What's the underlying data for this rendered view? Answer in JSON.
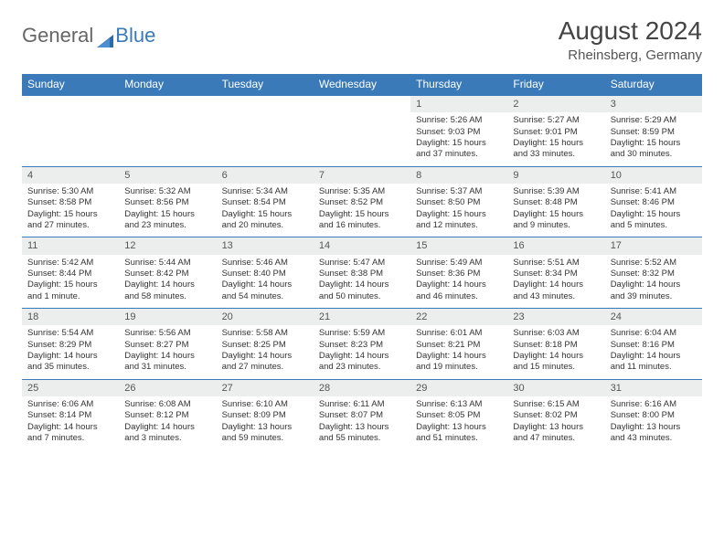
{
  "brand": {
    "part1": "General",
    "part2": "Blue"
  },
  "title": "August 2024",
  "location": "Rheinsberg, Germany",
  "colors": {
    "header_bg": "#3a7ab8",
    "header_text": "#ffffff",
    "daynum_bg": "#eceeee",
    "border": "#3a7ab8",
    "text": "#333333",
    "background": "#ffffff"
  },
  "days_of_week": [
    "Sunday",
    "Monday",
    "Tuesday",
    "Wednesday",
    "Thursday",
    "Friday",
    "Saturday"
  ],
  "weeks": [
    [
      null,
      null,
      null,
      null,
      {
        "n": "1",
        "sr": "Sunrise: 5:26 AM",
        "ss": "Sunset: 9:03 PM",
        "dl": "Daylight: 15 hours and 37 minutes."
      },
      {
        "n": "2",
        "sr": "Sunrise: 5:27 AM",
        "ss": "Sunset: 9:01 PM",
        "dl": "Daylight: 15 hours and 33 minutes."
      },
      {
        "n": "3",
        "sr": "Sunrise: 5:29 AM",
        "ss": "Sunset: 8:59 PM",
        "dl": "Daylight: 15 hours and 30 minutes."
      }
    ],
    [
      {
        "n": "4",
        "sr": "Sunrise: 5:30 AM",
        "ss": "Sunset: 8:58 PM",
        "dl": "Daylight: 15 hours and 27 minutes."
      },
      {
        "n": "5",
        "sr": "Sunrise: 5:32 AM",
        "ss": "Sunset: 8:56 PM",
        "dl": "Daylight: 15 hours and 23 minutes."
      },
      {
        "n": "6",
        "sr": "Sunrise: 5:34 AM",
        "ss": "Sunset: 8:54 PM",
        "dl": "Daylight: 15 hours and 20 minutes."
      },
      {
        "n": "7",
        "sr": "Sunrise: 5:35 AM",
        "ss": "Sunset: 8:52 PM",
        "dl": "Daylight: 15 hours and 16 minutes."
      },
      {
        "n": "8",
        "sr": "Sunrise: 5:37 AM",
        "ss": "Sunset: 8:50 PM",
        "dl": "Daylight: 15 hours and 12 minutes."
      },
      {
        "n": "9",
        "sr": "Sunrise: 5:39 AM",
        "ss": "Sunset: 8:48 PM",
        "dl": "Daylight: 15 hours and 9 minutes."
      },
      {
        "n": "10",
        "sr": "Sunrise: 5:41 AM",
        "ss": "Sunset: 8:46 PM",
        "dl": "Daylight: 15 hours and 5 minutes."
      }
    ],
    [
      {
        "n": "11",
        "sr": "Sunrise: 5:42 AM",
        "ss": "Sunset: 8:44 PM",
        "dl": "Daylight: 15 hours and 1 minute."
      },
      {
        "n": "12",
        "sr": "Sunrise: 5:44 AM",
        "ss": "Sunset: 8:42 PM",
        "dl": "Daylight: 14 hours and 58 minutes."
      },
      {
        "n": "13",
        "sr": "Sunrise: 5:46 AM",
        "ss": "Sunset: 8:40 PM",
        "dl": "Daylight: 14 hours and 54 minutes."
      },
      {
        "n": "14",
        "sr": "Sunrise: 5:47 AM",
        "ss": "Sunset: 8:38 PM",
        "dl": "Daylight: 14 hours and 50 minutes."
      },
      {
        "n": "15",
        "sr": "Sunrise: 5:49 AM",
        "ss": "Sunset: 8:36 PM",
        "dl": "Daylight: 14 hours and 46 minutes."
      },
      {
        "n": "16",
        "sr": "Sunrise: 5:51 AM",
        "ss": "Sunset: 8:34 PM",
        "dl": "Daylight: 14 hours and 43 minutes."
      },
      {
        "n": "17",
        "sr": "Sunrise: 5:52 AM",
        "ss": "Sunset: 8:32 PM",
        "dl": "Daylight: 14 hours and 39 minutes."
      }
    ],
    [
      {
        "n": "18",
        "sr": "Sunrise: 5:54 AM",
        "ss": "Sunset: 8:29 PM",
        "dl": "Daylight: 14 hours and 35 minutes."
      },
      {
        "n": "19",
        "sr": "Sunrise: 5:56 AM",
        "ss": "Sunset: 8:27 PM",
        "dl": "Daylight: 14 hours and 31 minutes."
      },
      {
        "n": "20",
        "sr": "Sunrise: 5:58 AM",
        "ss": "Sunset: 8:25 PM",
        "dl": "Daylight: 14 hours and 27 minutes."
      },
      {
        "n": "21",
        "sr": "Sunrise: 5:59 AM",
        "ss": "Sunset: 8:23 PM",
        "dl": "Daylight: 14 hours and 23 minutes."
      },
      {
        "n": "22",
        "sr": "Sunrise: 6:01 AM",
        "ss": "Sunset: 8:21 PM",
        "dl": "Daylight: 14 hours and 19 minutes."
      },
      {
        "n": "23",
        "sr": "Sunrise: 6:03 AM",
        "ss": "Sunset: 8:18 PM",
        "dl": "Daylight: 14 hours and 15 minutes."
      },
      {
        "n": "24",
        "sr": "Sunrise: 6:04 AM",
        "ss": "Sunset: 8:16 PM",
        "dl": "Daylight: 14 hours and 11 minutes."
      }
    ],
    [
      {
        "n": "25",
        "sr": "Sunrise: 6:06 AM",
        "ss": "Sunset: 8:14 PM",
        "dl": "Daylight: 14 hours and 7 minutes."
      },
      {
        "n": "26",
        "sr": "Sunrise: 6:08 AM",
        "ss": "Sunset: 8:12 PM",
        "dl": "Daylight: 14 hours and 3 minutes."
      },
      {
        "n": "27",
        "sr": "Sunrise: 6:10 AM",
        "ss": "Sunset: 8:09 PM",
        "dl": "Daylight: 13 hours and 59 minutes."
      },
      {
        "n": "28",
        "sr": "Sunrise: 6:11 AM",
        "ss": "Sunset: 8:07 PM",
        "dl": "Daylight: 13 hours and 55 minutes."
      },
      {
        "n": "29",
        "sr": "Sunrise: 6:13 AM",
        "ss": "Sunset: 8:05 PM",
        "dl": "Daylight: 13 hours and 51 minutes."
      },
      {
        "n": "30",
        "sr": "Sunrise: 6:15 AM",
        "ss": "Sunset: 8:02 PM",
        "dl": "Daylight: 13 hours and 47 minutes."
      },
      {
        "n": "31",
        "sr": "Sunrise: 6:16 AM",
        "ss": "Sunset: 8:00 PM",
        "dl": "Daylight: 13 hours and 43 minutes."
      }
    ]
  ]
}
